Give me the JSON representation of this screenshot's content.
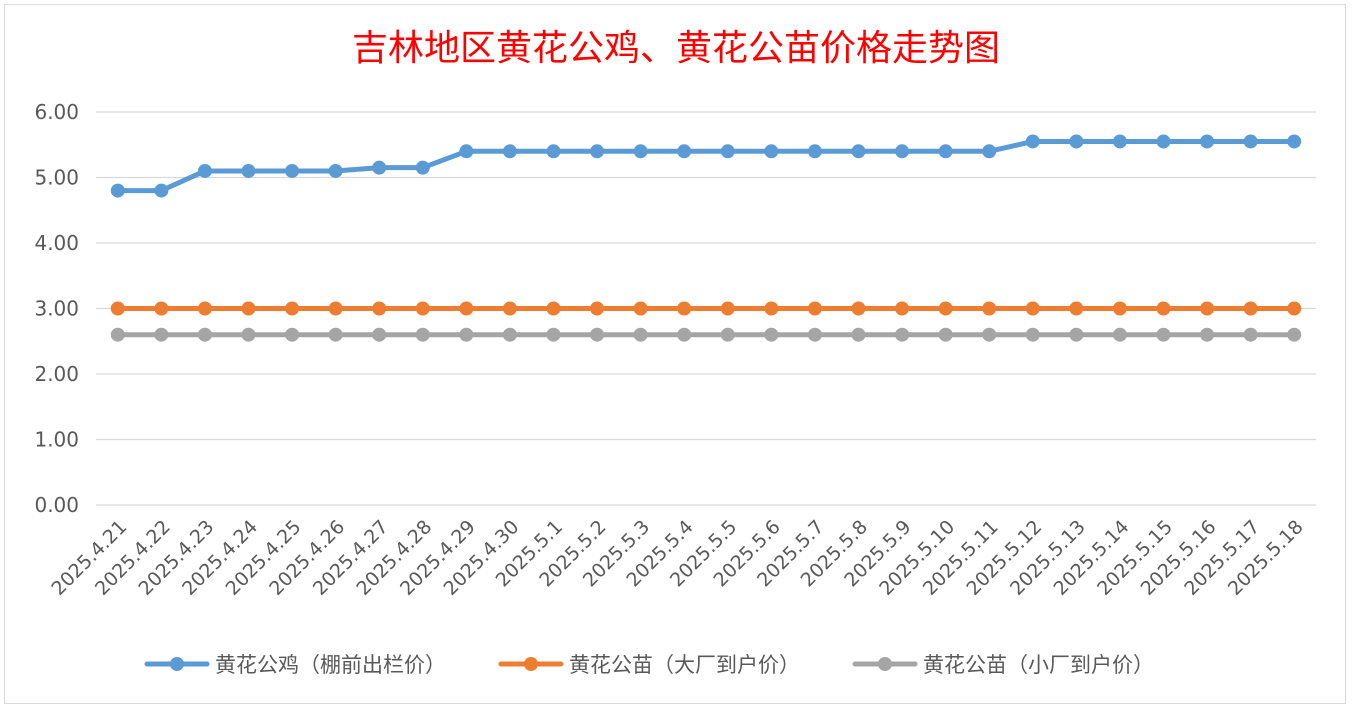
{
  "chart_data": {
    "type": "line",
    "title": "吉林地区黄花公鸡、黄花公苗价格走势图",
    "xlabel": "",
    "ylabel": "",
    "ylim": [
      0,
      6
    ],
    "yticks": [
      "0.00",
      "1.00",
      "2.00",
      "3.00",
      "4.00",
      "5.00",
      "6.00"
    ],
    "grid": true,
    "legend_position": "bottom",
    "categories": [
      "2025.4.21",
      "2025.4.22",
      "2025.4.23",
      "2025.4.24",
      "2025.4.25",
      "2025.4.26",
      "2025.4.27",
      "2025.4.28",
      "2025.4.29",
      "2025.4.30",
      "2025.5.1",
      "2025.5.2",
      "2025.5.3",
      "2025.5.4",
      "2025.5.5",
      "2025.5.6",
      "2025.5.7",
      "2025.5.8",
      "2025.5.9",
      "2025.5.10",
      "2025.5.11",
      "2025.5.12",
      "2025.5.13",
      "2025.5.14",
      "2025.5.15",
      "2025.5.16",
      "2025.5.17",
      "2025.5.18"
    ],
    "series": [
      {
        "name": "黄花公鸡（棚前出栏价）",
        "color": "#5b9bd5",
        "values": [
          4.8,
          4.8,
          5.1,
          5.1,
          5.1,
          5.1,
          5.15,
          5.15,
          5.4,
          5.4,
          5.4,
          5.4,
          5.4,
          5.4,
          5.4,
          5.4,
          5.4,
          5.4,
          5.4,
          5.4,
          5.4,
          5.55,
          5.55,
          5.55,
          5.55,
          5.55,
          5.55,
          5.55
        ]
      },
      {
        "name": "黄花公苗（大厂到户价）",
        "color": "#ed7d31",
        "values": [
          3.0,
          3.0,
          3.0,
          3.0,
          3.0,
          3.0,
          3.0,
          3.0,
          3.0,
          3.0,
          3.0,
          3.0,
          3.0,
          3.0,
          3.0,
          3.0,
          3.0,
          3.0,
          3.0,
          3.0,
          3.0,
          3.0,
          3.0,
          3.0,
          3.0,
          3.0,
          3.0,
          3.0
        ]
      },
      {
        "name": "黄花公苗（小厂到户价）",
        "color": "#a5a5a5",
        "values": [
          2.6,
          2.6,
          2.6,
          2.6,
          2.6,
          2.6,
          2.6,
          2.6,
          2.6,
          2.6,
          2.6,
          2.6,
          2.6,
          2.6,
          2.6,
          2.6,
          2.6,
          2.6,
          2.6,
          2.6,
          2.6,
          2.6,
          2.6,
          2.6,
          2.6,
          2.6,
          2.6,
          2.6
        ]
      }
    ]
  }
}
